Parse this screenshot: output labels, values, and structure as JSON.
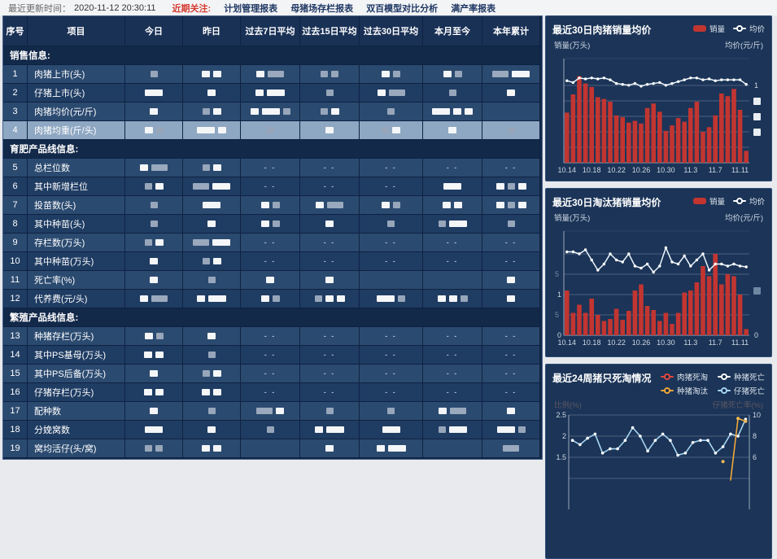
{
  "topbar": {
    "update_label": "最近更新时间：",
    "update_time": "2020-11-12 20:30:11",
    "focus_label": "近期关注:",
    "links": [
      "计划管理报表",
      "母猪场存栏报表",
      "双百模型对比分析",
      "满产率报表"
    ]
  },
  "table": {
    "headers": [
      "序号",
      "项目",
      "今日",
      "昨日",
      "过去7日平均",
      "过去15日平均",
      "过去30日平均",
      "本月至今",
      "本年累计"
    ],
    "redaction_note": "numeric cell values are blurred in source; encoded as blocks w/g (small white/gray) W/G (wide), '-' means '- -', '' empty",
    "rows": [
      {
        "type": "section",
        "label": "销售信息:"
      },
      {
        "type": "data",
        "num": "1",
        "label": "肉猪上市(头)",
        "cells": [
          "g",
          "ww",
          "wG",
          "gg",
          "wg",
          "wg",
          "GW"
        ]
      },
      {
        "type": "data",
        "num": "2",
        "label": "仔猪上市(头)",
        "cells": [
          "W",
          "w",
          "wW",
          "g",
          "wG",
          "g",
          "w"
        ]
      },
      {
        "type": "data",
        "num": "3",
        "label": "肉猪均价(元/斤)",
        "cells": [
          "w",
          "gw",
          "wWg",
          "gw",
          "g",
          "Www",
          ""
        ]
      },
      {
        "type": "data",
        "num": "4",
        "label": "肉猪均重(斤/头)",
        "selected": true,
        "cells": [
          "wg",
          "Ww",
          "g",
          "w",
          "gw",
          "w",
          "g"
        ]
      },
      {
        "type": "section",
        "label": "育肥产品线信息:"
      },
      {
        "type": "data",
        "num": "5",
        "label": "总栏位数",
        "cells": [
          "wG",
          "gw",
          "-",
          "-",
          "-",
          "-",
          "-"
        ]
      },
      {
        "type": "data",
        "num": "6",
        "label": "其中新增栏位",
        "cells": [
          "gw",
          "GW",
          "-",
          "-",
          "-",
          "W",
          "wgw"
        ]
      },
      {
        "type": "data",
        "num": "7",
        "label": "投苗数(头)",
        "cells": [
          "g",
          "W",
          "wg",
          "wG",
          "wg",
          "ww",
          "wgw"
        ]
      },
      {
        "type": "data",
        "num": "8",
        "label": "其中种苗(头)",
        "cells": [
          "g",
          "w",
          "wg",
          "w",
          "g",
          "gW",
          "g"
        ]
      },
      {
        "type": "data",
        "num": "9",
        "label": "存栏数(万头)",
        "cells": [
          "gw",
          "GW",
          "-",
          "-",
          "-",
          "-",
          "-"
        ]
      },
      {
        "type": "data",
        "num": "10",
        "label": "其中种苗(万头)",
        "cells": [
          "w",
          "gw",
          "-",
          "-",
          "-",
          "-",
          "-"
        ]
      },
      {
        "type": "data",
        "num": "11",
        "label": "死亡率(%)",
        "cells": [
          "w",
          "g",
          "w",
          "w",
          "",
          "",
          "w"
        ]
      },
      {
        "type": "data",
        "num": "12",
        "label": "代养费(元/头)",
        "cells": [
          "wG",
          "wW",
          "wg",
          "gww",
          "Wg",
          "wwg",
          "w"
        ]
      },
      {
        "type": "section",
        "label": "繁殖产品线信息:"
      },
      {
        "type": "data",
        "num": "13",
        "label": "种猪存栏(万头)",
        "cells": [
          "wg",
          "w",
          "-",
          "-",
          "-",
          "-",
          "-"
        ]
      },
      {
        "type": "data",
        "num": "14",
        "label": "其中PS基母(万头)",
        "cells": [
          "ww",
          "g",
          "-",
          "-",
          "-",
          "-",
          "-"
        ]
      },
      {
        "type": "data",
        "num": "15",
        "label": "其中PS后备(万头)",
        "cells": [
          "w",
          "gw",
          "-",
          "-",
          "-",
          "-",
          "-"
        ]
      },
      {
        "type": "data",
        "num": "16",
        "label": "仔猪存栏(万头)",
        "cells": [
          "ww",
          "ww",
          "-",
          "-",
          "-",
          "-",
          "-"
        ]
      },
      {
        "type": "data",
        "num": "17",
        "label": "配种数",
        "cells": [
          "w",
          "g",
          "Gw",
          "g",
          "g",
          "wG",
          "w"
        ]
      },
      {
        "type": "data",
        "num": "18",
        "label": "分娩窝数",
        "cells": [
          "W",
          "w",
          "g",
          "wW",
          "W",
          "gW",
          "Wg"
        ]
      },
      {
        "type": "data",
        "num": "19",
        "label": "窝均活仔(头/窝)",
        "cells": [
          "gg",
          "ww",
          "",
          "w",
          "wW",
          "",
          "G"
        ]
      }
    ]
  },
  "chart_data": [
    {
      "type": "bar",
      "title": "最近30日肉猪销量均价",
      "legend": [
        {
          "label": "销量",
          "marker": "bar",
          "color": "#c23531"
        },
        {
          "label": "均价",
          "marker": "line",
          "color": "#ffffff"
        }
      ],
      "y_left_label": "销量(万头)",
      "y_right_label": "均价(元/斤)",
      "x_tick_labels": [
        "10.14",
        "10.18",
        "10.22",
        "10.26",
        "10.30",
        "11.3",
        "11.7",
        "11.11"
      ],
      "right_tick": "1",
      "axis_note": "other y-axis tick labels redacted in source",
      "series": [
        {
          "name": "销量",
          "type": "bar",
          "values_norm": [
            0.55,
            0.75,
            0.95,
            0.87,
            0.83,
            0.72,
            0.7,
            0.67,
            0.52,
            0.5,
            0.44,
            0.46,
            0.43,
            0.6,
            0.65,
            0.56,
            0.35,
            0.41,
            0.49,
            0.45,
            0.6,
            0.67,
            0.34,
            0.39,
            0.52,
            0.76,
            0.73,
            0.81,
            0.58,
            0.13
          ]
        },
        {
          "name": "均价",
          "type": "line",
          "values_norm": [
            0.9,
            0.88,
            0.93,
            0.92,
            0.93,
            0.92,
            0.93,
            0.91,
            0.87,
            0.86,
            0.85,
            0.87,
            0.84,
            0.86,
            0.87,
            0.88,
            0.85,
            0.87,
            0.89,
            0.91,
            0.93,
            0.93,
            0.91,
            0.92,
            0.9,
            0.91,
            0.91,
            0.91,
            0.91,
            0.86
          ]
        }
      ]
    },
    {
      "type": "bar",
      "title": "最近30日淘汰猪销量均价",
      "legend": [
        {
          "label": "销量",
          "marker": "bar",
          "color": "#c23531"
        },
        {
          "label": "均价",
          "marker": "line",
          "color": "#ffffff"
        }
      ],
      "y_left_label": "销量(万头)",
      "y_right_label": "均价(元/斤)",
      "x_tick_labels": [
        "10.14",
        "10.18",
        "10.22",
        "10.26",
        "10.30",
        "11.3",
        "11.7",
        "11.11"
      ],
      "left_ticks": [
        "1",
        "0"
      ],
      "left_partial_ticks": [
        {
          "label": "5",
          "v": 1.5
        },
        {
          "label": "5",
          "v": 0.5
        }
      ],
      "right_ticks": [
        "0"
      ],
      "ylim": [
        0,
        2.2
      ],
      "series": [
        {
          "name": "销量",
          "type": "bar",
          "values": [
            1.1,
            0.55,
            0.75,
            0.55,
            0.9,
            0.5,
            0.35,
            0.4,
            0.65,
            0.38,
            0.6,
            1.1,
            1.25,
            0.72,
            0.62,
            0.35,
            0.55,
            0.28,
            0.55,
            1.05,
            1.1,
            1.3,
            1.7,
            1.45,
            2.0,
            1.25,
            1.5,
            1.45,
            1.0,
            0.15
          ]
        },
        {
          "name": "均价",
          "type": "line",
          "values": [
            2.05,
            2.05,
            2.0,
            2.1,
            1.85,
            1.6,
            1.75,
            2.0,
            1.85,
            1.8,
            2.0,
            1.7,
            1.65,
            1.75,
            1.55,
            1.7,
            2.15,
            1.8,
            1.75,
            1.95,
            1.7,
            1.85,
            2.0,
            1.6,
            1.75,
            1.75,
            1.7,
            1.75,
            1.7,
            1.68
          ]
        }
      ]
    },
    {
      "type": "line",
      "title": "最近24周猪只死淘情况",
      "legend": [
        {
          "label": "肉猪死淘",
          "marker": "line",
          "color": "#e3483d"
        },
        {
          "label": "种猪死亡",
          "marker": "line",
          "color": "#ffffff"
        },
        {
          "label": "种猪淘汰",
          "marker": "line",
          "color": "#f0a73a"
        },
        {
          "label": "仔猪死亡",
          "marker": "line",
          "color": "#a6d4ef"
        }
      ],
      "y_left_label": "比例(%)",
      "y_right_label": "仔猪死亡率(%)",
      "axis_label_note": "axis titles appear dimmed/blurred in source",
      "left_ticks": [
        "2.5",
        "2",
        "1.5"
      ],
      "right_ticks": [
        "10",
        "8",
        "6"
      ],
      "visible_ylim_left": [
        1.5,
        2.5
      ],
      "clipped_note": "chart bottom cut off by viewport",
      "series": [
        {
          "name": "仔猪死亡",
          "color": "#a6d4ef",
          "values": [
            1.9,
            1.8,
            1.95,
            2.05,
            1.6,
            1.7,
            1.7,
            1.9,
            2.2,
            2.0,
            1.65,
            1.9,
            2.05,
            1.9,
            1.55,
            1.6,
            1.85,
            1.9,
            1.9,
            1.6,
            1.75,
            2.05,
            2.0,
            2.4
          ]
        },
        {
          "name": "种猪淘汰",
          "color": "#f0a73a",
          "values": [
            null,
            null,
            null,
            null,
            null,
            null,
            null,
            null,
            null,
            null,
            null,
            null,
            null,
            null,
            null,
            null,
            null,
            null,
            null,
            null,
            null,
            0.95,
            2.42,
            2.35
          ],
          "stray_point": {
            "index": 20,
            "value": 1.4
          }
        }
      ]
    }
  ],
  "colors": {
    "bar_red": "#c23531",
    "line_white": "#eaf4fb",
    "blue_line": "#a6d4ef",
    "orange_line": "#f0a73a",
    "selected_row": "#8ea7c2",
    "row_light": "#2b4a70",
    "row_dark": "#1f3c63",
    "section_bg": "#13294a",
    "header_bg": "#1a3156",
    "card_bg": "#1b3457",
    "focus_red": "#d43b2f",
    "link_navy": "#1f3864"
  }
}
